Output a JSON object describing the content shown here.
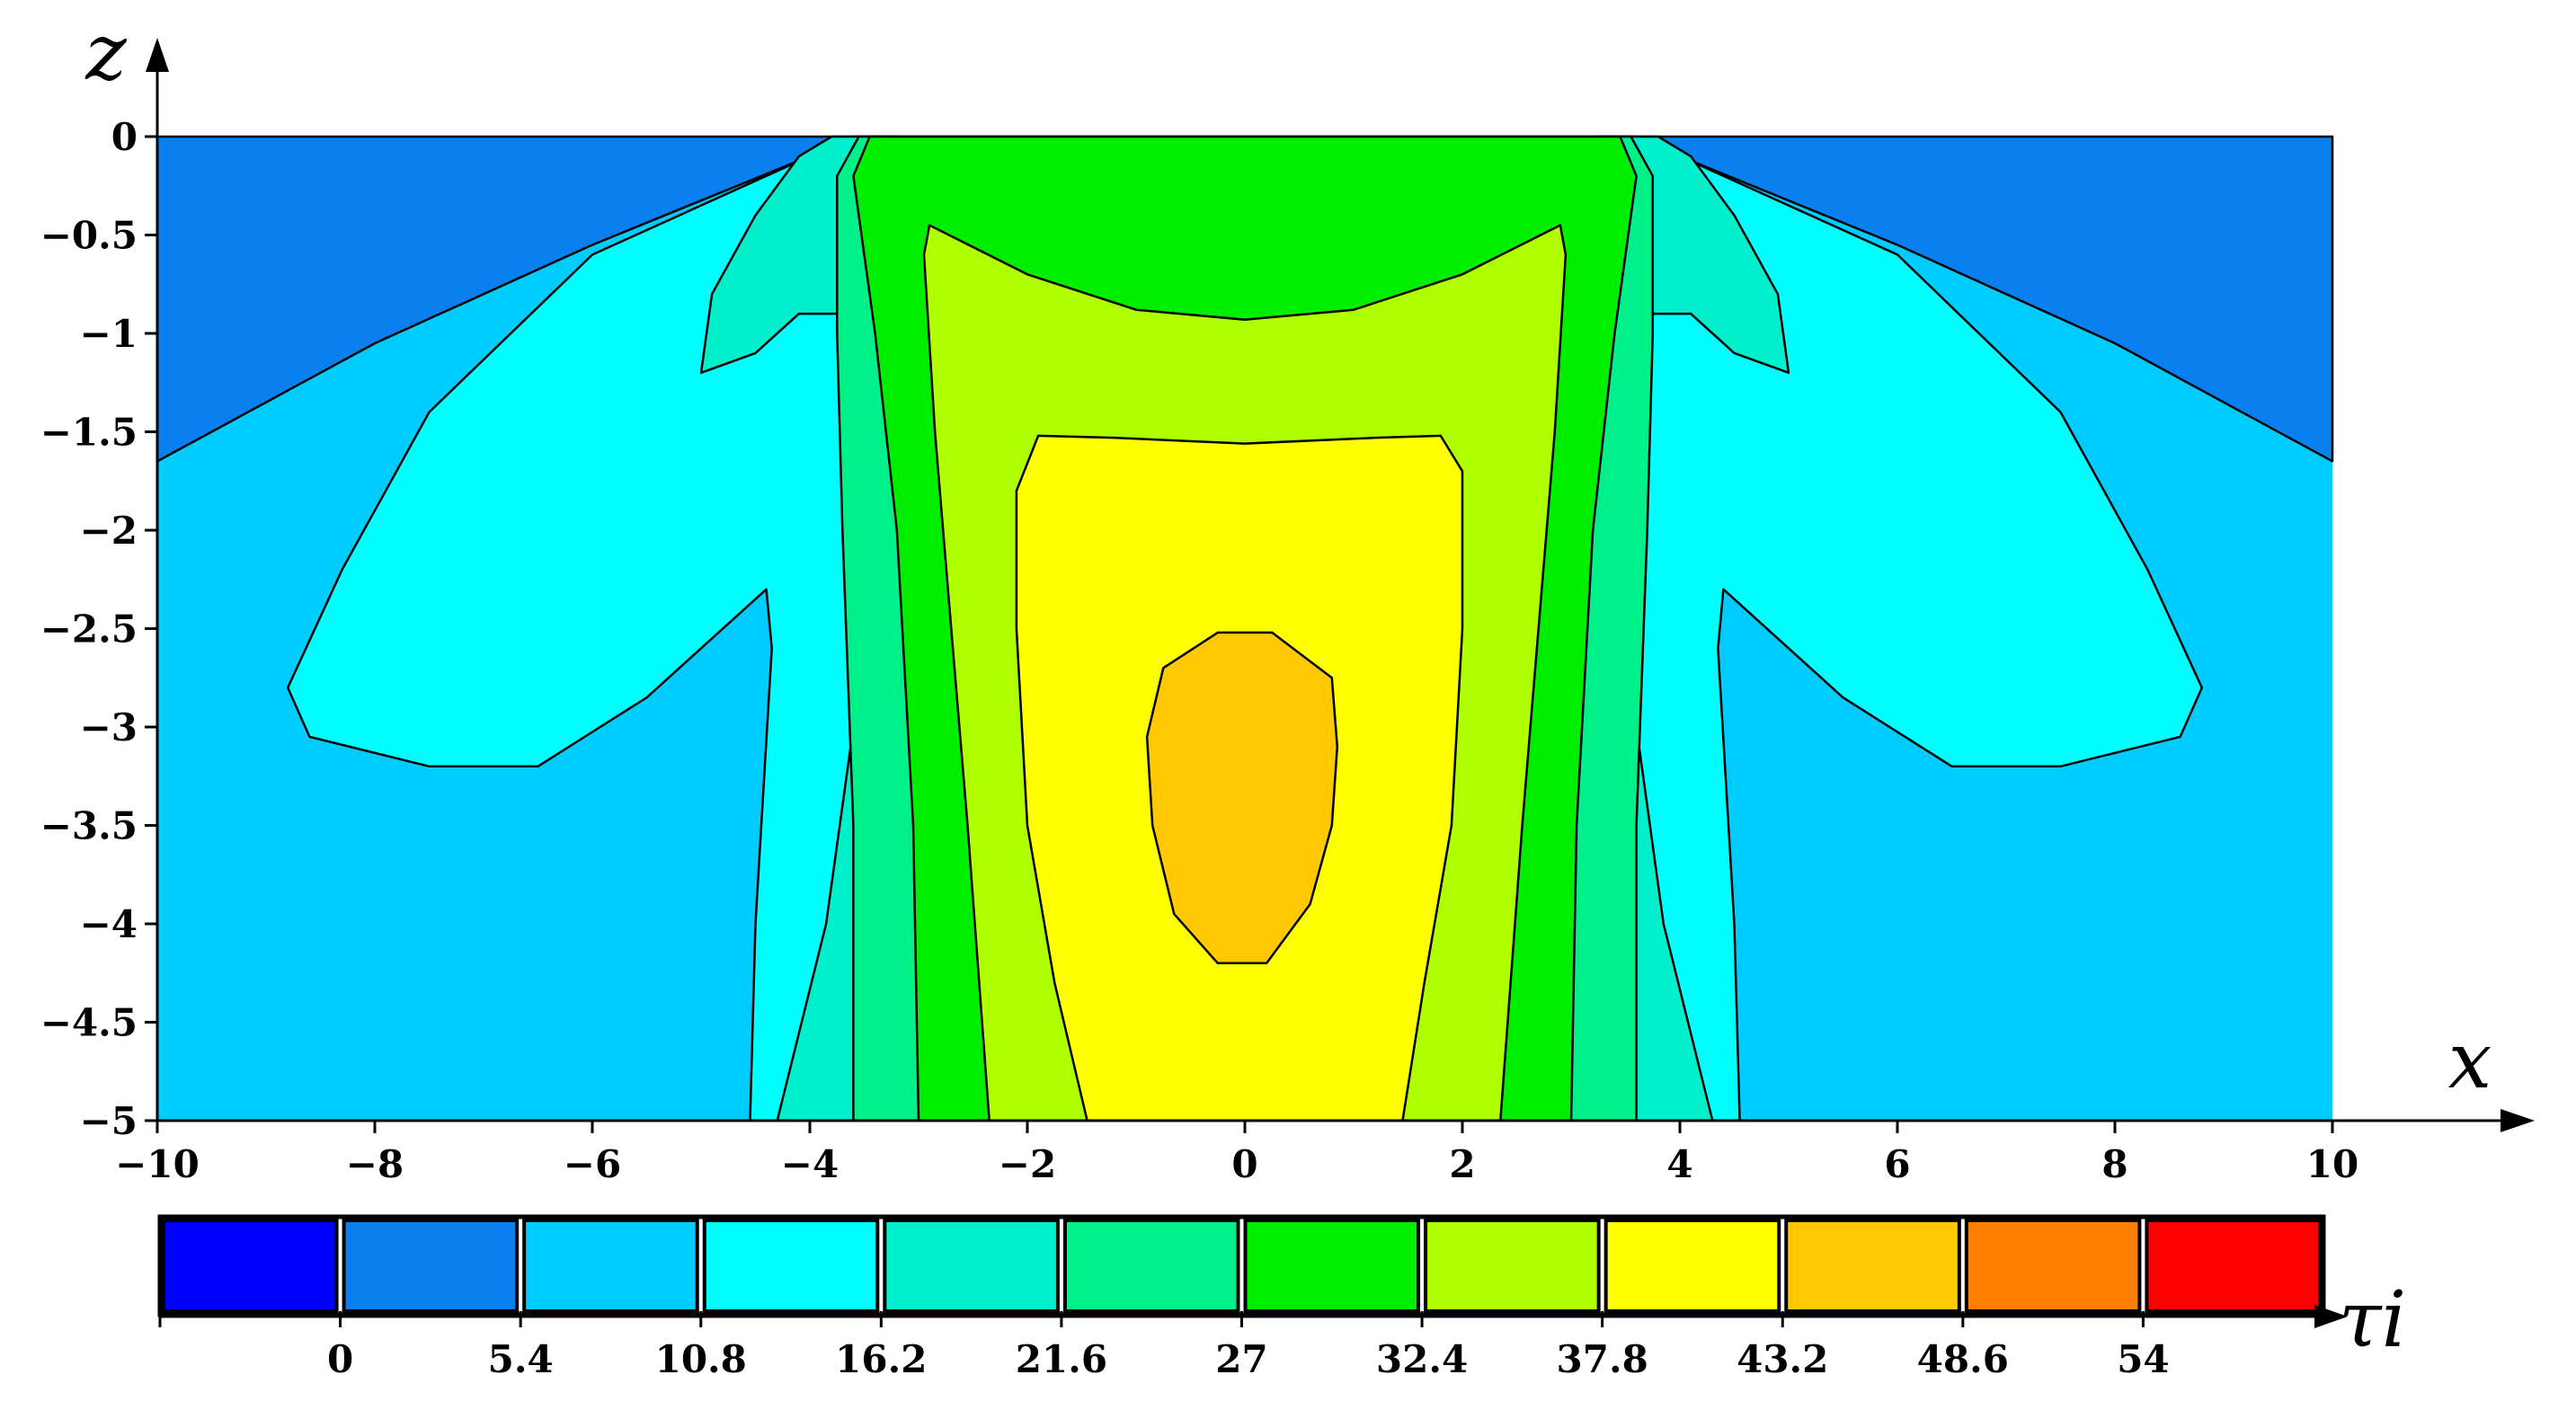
{
  "chart_data": {
    "type": "contour",
    "xlabel": "x",
    "ylabel": "z",
    "colorbar_label": "τi",
    "xlim": [
      -10,
      10
    ],
    "ylim": [
      -5,
      0
    ],
    "x_ticks": [
      -10,
      -8,
      -6,
      -4,
      -2,
      0,
      2,
      4,
      6,
      8,
      10
    ],
    "y_ticks": [
      0,
      -0.5,
      -1,
      -1.5,
      -2,
      -2.5,
      -3,
      -3.5,
      -4,
      -4.5,
      -5
    ],
    "x_tick_labels": [
      "−10",
      "−8",
      "−6",
      "−4",
      "−2",
      "0",
      "2",
      "4",
      "6",
      "8",
      "10"
    ],
    "y_tick_labels": [
      "0",
      "−0.5",
      "−1",
      "−1.5",
      "−2",
      "−2.5",
      "−3",
      "−3.5",
      "−4",
      "−4.5",
      "−5"
    ],
    "levels": [
      0,
      5.4,
      10.8,
      16.2,
      21.6,
      27,
      32.4,
      37.8,
      43.2,
      48.6,
      54
    ],
    "level_labels": [
      "0",
      "5.4",
      "10.8",
      "16.2",
      "21.6",
      "27",
      "32.4",
      "37.8",
      "43.2",
      "48.6",
      "54"
    ],
    "colors": [
      "#0000ff",
      "#0a80f0",
      "#00ccff",
      "#00ffff",
      "#00f0cc",
      "#00f08a",
      "#00ee00",
      "#b0ff00",
      "#ffff00",
      "#ffc800",
      "#ff7f00",
      "#ff0000"
    ],
    "regions": [
      {
        "level_index": 1,
        "points": [
          [
            -10,
            0
          ],
          [
            10,
            0
          ],
          [
            10,
            -1.65
          ],
          [
            8,
            -1.05
          ],
          [
            6,
            -0.55
          ],
          [
            4,
            -0.1
          ],
          [
            3.5,
            0
          ],
          [
            -3.5,
            0
          ],
          [
            -4,
            -0.1
          ],
          [
            -6,
            -0.55
          ],
          [
            -8,
            -1.05
          ],
          [
            -10,
            -1.65
          ]
        ]
      },
      {
        "level_index": 3,
        "points": [
          [
            -3.6,
            0
          ],
          [
            -4,
            -0.1
          ],
          [
            -6,
            -0.6
          ],
          [
            -7.5,
            -1.4
          ],
          [
            -8.3,
            -2.2
          ],
          [
            -8.8,
            -2.8
          ],
          [
            -8.6,
            -3.05
          ],
          [
            -7.5,
            -3.2
          ],
          [
            -6.5,
            -3.2
          ],
          [
            -5.5,
            -2.85
          ],
          [
            -4.7,
            -2.45
          ],
          [
            -4.4,
            -2.3
          ],
          [
            -4.35,
            -2.6
          ],
          [
            -4.5,
            -4
          ],
          [
            -4.55,
            -5
          ],
          [
            -3.2,
            -5
          ],
          [
            -3.2,
            0
          ]
        ]
      },
      {
        "level_index": 3,
        "points": [
          [
            3.6,
            0
          ],
          [
            4,
            -0.1
          ],
          [
            6,
            -0.6
          ],
          [
            7.5,
            -1.4
          ],
          [
            8.3,
            -2.2
          ],
          [
            8.8,
            -2.8
          ],
          [
            8.6,
            -3.05
          ],
          [
            7.5,
            -3.2
          ],
          [
            6.5,
            -3.2
          ],
          [
            5.5,
            -2.85
          ],
          [
            4.7,
            -2.45
          ],
          [
            4.4,
            -2.3
          ],
          [
            4.35,
            -2.6
          ],
          [
            4.5,
            -4
          ],
          [
            4.55,
            -5
          ],
          [
            3.2,
            -5
          ],
          [
            3.2,
            0
          ]
        ]
      },
      {
        "level_index": 4,
        "points": [
          [
            -3.8,
            0
          ],
          [
            -4.1,
            -0.1
          ],
          [
            -4.5,
            -0.4
          ],
          [
            -4.9,
            -0.8
          ],
          [
            -5,
            -1.2
          ],
          [
            -4.5,
            -1.1
          ],
          [
            -4.1,
            -0.9
          ],
          [
            -3.7,
            -0.9
          ],
          [
            -3.6,
            -3
          ],
          [
            -3.85,
            -4
          ],
          [
            -4.3,
            -5
          ],
          [
            -3.2,
            -5
          ],
          [
            -3.2,
            0
          ]
        ]
      },
      {
        "level_index": 4,
        "points": [
          [
            3.8,
            0
          ],
          [
            4.1,
            -0.1
          ],
          [
            4.5,
            -0.4
          ],
          [
            4.9,
            -0.8
          ],
          [
            5,
            -1.2
          ],
          [
            4.5,
            -1.1
          ],
          [
            4.1,
            -0.9
          ],
          [
            3.7,
            -0.9
          ],
          [
            3.6,
            -3
          ],
          [
            3.85,
            -4
          ],
          [
            4.3,
            -5
          ],
          [
            3.2,
            -5
          ],
          [
            3.2,
            0
          ]
        ]
      },
      {
        "level_index": 5,
        "points": [
          [
            -3.55,
            0
          ],
          [
            -3.75,
            -0.2
          ],
          [
            -3.75,
            -1
          ],
          [
            -3.7,
            -2
          ],
          [
            -3.6,
            -3.5
          ],
          [
            -3.6,
            -5
          ],
          [
            3.6,
            -5
          ],
          [
            3.6,
            -3.5
          ],
          [
            3.7,
            -2
          ],
          [
            3.75,
            -1
          ],
          [
            3.75,
            -0.2
          ],
          [
            3.55,
            0
          ]
        ]
      },
      {
        "level_index": 6,
        "points": [
          [
            -3.45,
            0
          ],
          [
            -3.6,
            -0.2
          ],
          [
            -3.4,
            -1
          ],
          [
            -3.2,
            -2
          ],
          [
            -3.05,
            -3.5
          ],
          [
            -3,
            -5
          ],
          [
            3,
            -5
          ],
          [
            3.05,
            -3.5
          ],
          [
            3.2,
            -2
          ],
          [
            3.4,
            -1
          ],
          [
            3.6,
            -0.2
          ],
          [
            3.45,
            0
          ]
        ]
      },
      {
        "level_index": 7,
        "points": [
          [
            -2.9,
            -0.45
          ],
          [
            -2,
            -0.7
          ],
          [
            -1,
            -0.88
          ],
          [
            0,
            -0.93
          ],
          [
            1,
            -0.88
          ],
          [
            2,
            -0.7
          ],
          [
            2.9,
            -0.45
          ],
          [
            2.95,
            -0.6
          ],
          [
            2.85,
            -1.5
          ],
          [
            2.7,
            -2.5
          ],
          [
            2.55,
            -3.5
          ],
          [
            2.35,
            -5
          ],
          [
            -2.35,
            -5
          ],
          [
            -2.55,
            -3.5
          ],
          [
            -2.7,
            -2.5
          ],
          [
            -2.85,
            -1.5
          ],
          [
            -2.95,
            -0.6
          ]
        ]
      },
      {
        "level_index": 8,
        "points": [
          [
            -1.9,
            -1.52
          ],
          [
            -1.2,
            -1.53
          ],
          [
            0,
            -1.56
          ],
          [
            1.2,
            -1.53
          ],
          [
            1.8,
            -1.52
          ],
          [
            2,
            -1.7
          ],
          [
            2,
            -2.5
          ],
          [
            1.9,
            -3.5
          ],
          [
            1.65,
            -4.3
          ],
          [
            1.45,
            -5
          ],
          [
            -1.45,
            -5
          ],
          [
            -1.75,
            -4.3
          ],
          [
            -2,
            -3.5
          ],
          [
            -2.1,
            -2.5
          ],
          [
            -2.1,
            -1.8
          ]
        ]
      },
      {
        "level_index": 9,
        "points": [
          [
            -0.25,
            -2.52
          ],
          [
            0.25,
            -2.52
          ],
          [
            0.8,
            -2.75
          ],
          [
            0.85,
            -3.1
          ],
          [
            0.8,
            -3.5
          ],
          [
            0.6,
            -3.9
          ],
          [
            0.2,
            -4.2
          ],
          [
            -0.25,
            -4.2
          ],
          [
            -0.65,
            -3.95
          ],
          [
            -0.85,
            -3.5
          ],
          [
            -0.9,
            -3.05
          ],
          [
            -0.75,
            -2.7
          ]
        ]
      }
    ]
  }
}
